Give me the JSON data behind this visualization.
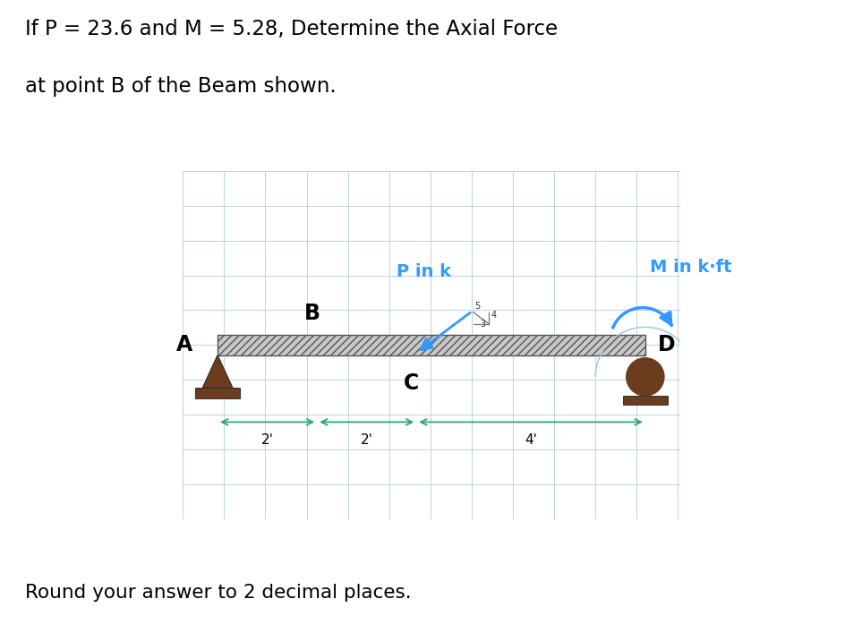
{
  "title_line1": "If P = 23.6 and M = 5.28, Determine the Axial Force",
  "title_line2": "at point B of the Beam shown.",
  "footer": "Round your answer to 2 decimal places.",
  "bg_color": "#ffffff",
  "grid_color": "#b8d4e4",
  "support_color": "#6b3c1e",
  "arrow_color": "#3399ff",
  "dim_arrow_color": "#2aaa6a",
  "label_A": "A",
  "label_B": "B",
  "label_C": "C",
  "label_D": "D",
  "label_P": "P in k",
  "label_M": "M in k·ft",
  "dim_2a": "2'",
  "dim_2b": "2'",
  "dim_4": "4'",
  "figsize": [
    9.45,
    7.07
  ],
  "dpi": 100
}
